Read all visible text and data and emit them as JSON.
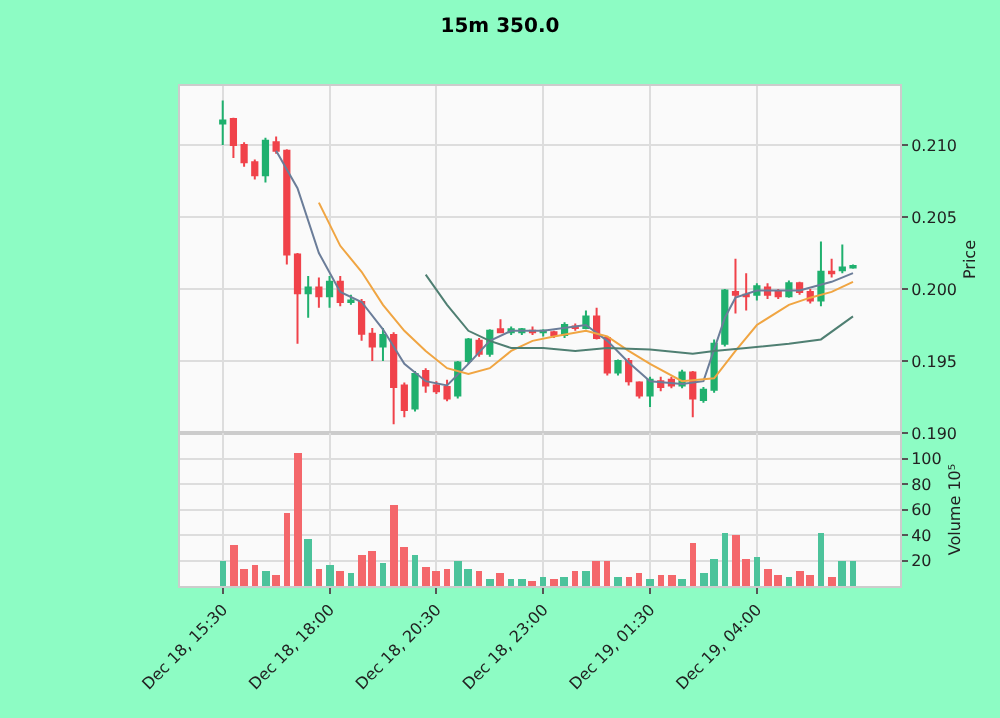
{
  "chart_data": [
    {
      "type": "candlestick",
      "title": "15m 350.0",
      "ylabel": "Price",
      "x": [
        "--12-18T15:30",
        "--12-18T15:45",
        "--12-18T16:00",
        "--12-18T16:15",
        "--12-18T16:30",
        "--12-18T16:45",
        "--12-18T17:00",
        "--12-18T17:15",
        "--12-18T17:30",
        "--12-18T17:45",
        "--12-18T18:00",
        "--12-18T18:15",
        "--12-18T18:30",
        "--12-18T18:45",
        "--12-18T19:00",
        "--12-18T19:15",
        "--12-18T19:30",
        "--12-18T19:45",
        "--12-18T20:00",
        "--12-18T20:15",
        "--12-18T20:30",
        "--12-18T20:45",
        "--12-18T21:00",
        "--12-18T21:15",
        "--12-18T21:30",
        "--12-18T21:45",
        "--12-18T22:00",
        "--12-18T22:15",
        "--12-18T22:30",
        "--12-18T22:45",
        "--12-18T23:00",
        "--12-18T23:15",
        "--12-18T23:30",
        "--12-18T23:45",
        "--12-19T00:00",
        "--12-19T00:15",
        "--12-19T00:30",
        "--12-19T00:45",
        "--12-19T01:00",
        "--12-19T01:15",
        "--12-19T01:30",
        "--12-19T01:45",
        "--12-19T02:00",
        "--12-19T02:15",
        "--12-19T02:30",
        "--12-19T02:45",
        "--12-19T03:00",
        "--12-19T03:15",
        "--12-19T03:30",
        "--12-19T03:45",
        "--12-19T04:00",
        "--12-19T04:15",
        "--12-19T04:30",
        "--12-19T04:45",
        "--12-19T05:00",
        "--12-19T05:15",
        "--12-19T05:30",
        "--12-19T05:45",
        "--12-19T06:00",
        "--12-19T06:15"
      ],
      "ohlc": [
        [
          0.2115,
          0.2131,
          0.21,
          0.2117
        ],
        [
          0.2118,
          0.2119,
          0.2091,
          0.21
        ],
        [
          0.21,
          0.2102,
          0.2085,
          0.2088
        ],
        [
          0.2088,
          0.209,
          0.2076,
          0.2079
        ],
        [
          0.2079,
          0.2105,
          0.2074,
          0.2103
        ],
        [
          0.2102,
          0.2106,
          0.2094,
          0.2096
        ],
        [
          0.2096,
          0.2097,
          0.2017,
          0.2024
        ],
        [
          0.2024,
          0.2025,
          0.1962,
          0.1997
        ],
        [
          0.1997,
          0.2009,
          0.198,
          0.2001
        ],
        [
          0.2001,
          0.2008,
          0.1987,
          0.1995
        ],
        [
          0.1995,
          0.2009,
          0.1987,
          0.2005
        ],
        [
          0.2005,
          0.2009,
          0.1988,
          0.1991
        ],
        [
          0.1991,
          0.1996,
          0.1989,
          0.1992
        ],
        [
          0.1991,
          0.1993,
          0.1964,
          0.1969
        ],
        [
          0.1969,
          0.1973,
          0.195,
          0.196
        ],
        [
          0.196,
          0.1973,
          0.195,
          0.1968
        ],
        [
          0.1968,
          0.197,
          0.1906,
          0.1932
        ],
        [
          0.1933,
          0.1935,
          0.1911,
          0.1916
        ],
        [
          0.1917,
          0.1943,
          0.1915,
          0.1941
        ],
        [
          0.1943,
          0.1945,
          0.1928,
          0.1933
        ],
        [
          0.1933,
          0.1936,
          0.1927,
          0.1929
        ],
        [
          0.1932,
          0.1937,
          0.1922,
          0.1924
        ],
        [
          0.1926,
          0.195,
          0.1924,
          0.1949
        ],
        [
          0.195,
          0.1966,
          0.1948,
          0.1965
        ],
        [
          0.1964,
          0.1966,
          0.1953,
          0.1955
        ],
        [
          0.1955,
          0.1972,
          0.1953,
          0.1971
        ],
        [
          0.1972,
          0.1979,
          0.197,
          0.197
        ],
        [
          0.197,
          0.1974,
          0.1968,
          0.1972
        ],
        [
          0.197,
          0.1973,
          0.1968,
          0.1972
        ],
        [
          0.1971,
          0.1974,
          0.1968,
          0.197
        ],
        [
          0.197,
          0.1972,
          0.1967,
          0.1971
        ],
        [
          0.197,
          0.1971,
          0.1966,
          0.1968
        ],
        [
          0.1968,
          0.1977,
          0.1966,
          0.1975
        ],
        [
          0.1974,
          0.1976,
          0.1971,
          0.1973
        ],
        [
          0.1973,
          0.1985,
          0.1972,
          0.1981
        ],
        [
          0.1981,
          0.1987,
          0.1965,
          0.1966
        ],
        [
          0.1966,
          0.1967,
          0.194,
          0.1942
        ],
        [
          0.1942,
          0.1951,
          0.194,
          0.195
        ],
        [
          0.195,
          0.1952,
          0.1933,
          0.1936
        ],
        [
          0.1935,
          0.1936,
          0.1924,
          0.1926
        ],
        [
          0.1926,
          0.1939,
          0.1918,
          0.1937
        ],
        [
          0.1936,
          0.1939,
          0.1929,
          0.1932
        ],
        [
          0.1937,
          0.1939,
          0.1931,
          0.1933
        ],
        [
          0.1933,
          0.1944,
          0.1931,
          0.1942
        ],
        [
          0.1942,
          0.1943,
          0.1911,
          0.1924
        ],
        [
          0.1923,
          0.1932,
          0.1921,
          0.193
        ],
        [
          0.193,
          0.1965,
          0.1928,
          0.1962
        ],
        [
          0.1962,
          0.2,
          0.196,
          0.1999
        ],
        [
          0.1998,
          0.2021,
          0.1983,
          0.1996
        ],
        [
          0.1996,
          0.2011,
          0.1985,
          0.1995
        ],
        [
          0.1996,
          0.2004,
          0.1992,
          0.2002
        ],
        [
          0.2001,
          0.2004,
          0.1993,
          0.1996
        ],
        [
          0.1998,
          0.2,
          0.1993,
          0.1995
        ],
        [
          0.1995,
          0.2006,
          0.1994,
          0.2004
        ],
        [
          0.2004,
          0.2005,
          0.1996,
          0.1998
        ],
        [
          0.1998,
          0.2,
          0.199,
          0.1992
        ],
        [
          0.1992,
          0.2033,
          0.1988,
          0.2012
        ],
        [
          0.2012,
          0.2021,
          0.2008,
          0.2011
        ],
        [
          0.2013,
          0.2031,
          0.2011,
          0.2015
        ],
        [
          0.2015,
          0.2017,
          0.2014,
          0.2016
        ]
      ],
      "colors": [
        "#1fb06e",
        "#f0424a",
        "#f0424a",
        "#f0424a",
        "#1fb06e",
        "#f0424a",
        "#f0424a",
        "#f0424a",
        "#1fb06e",
        "#f0424a",
        "#1fb06e",
        "#f0424a",
        "#1fb06e",
        "#f0424a",
        "#f0424a",
        "#1fb06e",
        "#f0424a",
        "#f0424a",
        "#1fb06e",
        "#f0424a",
        "#f0424a",
        "#f0424a",
        "#1fb06e",
        "#1fb06e",
        "#f0424a",
        "#1fb06e",
        "#f0424a",
        "#1fb06e",
        "#1fb06e",
        "#f0424a",
        "#1fb06e",
        "#f0424a",
        "#1fb06e",
        "#f0424a",
        "#1fb06e",
        "#f0424a",
        "#f0424a",
        "#1fb06e",
        "#f0424a",
        "#f0424a",
        "#1fb06e",
        "#f0424a",
        "#f0424a",
        "#1fb06e",
        "#f0424a",
        "#1fb06e",
        "#1fb06e",
        "#1fb06e",
        "#f0424a",
        "#f0424a",
        "#1fb06e",
        "#f0424a",
        "#f0424a",
        "#1fb06e",
        "#f0424a",
        "#f0424a",
        "#1fb06e",
        "#f0424a",
        "#1fb06e",
        "#1fb06e"
      ],
      "series": [
        {
          "type": "line",
          "color": "#6b7d99",
          "x": [
            "--12-18T16:45",
            "--12-18T17:15",
            "--12-18T17:45",
            "--12-18T18:15",
            "--12-18T18:45",
            "--12-18T19:15",
            "--12-18T19:45",
            "--12-18T20:15",
            "--12-18T20:45",
            "--12-18T21:15",
            "--12-18T21:45",
            "--12-18T22:15",
            "--12-18T23:00",
            "--12-19T00:00",
            "--12-19T00:30",
            "--12-19T01:00",
            "--12-19T01:30",
            "--12-19T02:15",
            "--12-19T02:45",
            "--12-19T03:15",
            "--12-19T03:30",
            "--12-19T04:00",
            "--12-19T05:00",
            "--12-19T05:45",
            "--12-19T06:15"
          ],
          "values": [
            0.2096,
            0.207,
            0.2025,
            0.1998,
            0.1991,
            0.1972,
            0.1948,
            0.1936,
            0.1933,
            0.1948,
            0.1964,
            0.1971,
            0.1971,
            0.1975,
            0.1964,
            0.1949,
            0.1936,
            0.1934,
            0.1936,
            0.198,
            0.1994,
            0.1999,
            0.1999,
            0.2005,
            0.2011
          ]
        },
        {
          "type": "line",
          "color": "#f0a542",
          "x": [
            "--12-18T17:45",
            "--12-18T18:15",
            "--12-18T18:45",
            "--12-18T19:15",
            "--12-18T19:45",
            "--12-18T20:15",
            "--12-18T20:45",
            "--12-18T21:15",
            "--12-18T21:45",
            "--12-18T22:15",
            "--12-18T22:45",
            "--12-18T23:15",
            "--12-19T00:00",
            "--12-19T00:30",
            "--12-19T01:00",
            "--12-19T01:30",
            "--12-19T02:15",
            "--12-19T03:00",
            "--12-19T03:30",
            "--12-19T04:00",
            "--12-19T04:45",
            "--12-19T05:15",
            "--12-19T05:45",
            "--12-19T06:15"
          ],
          "values": [
            0.206,
            0.203,
            0.2012,
            0.1989,
            0.1971,
            0.1957,
            0.1945,
            0.1941,
            0.1945,
            0.1957,
            0.1964,
            0.1967,
            0.1971,
            0.1967,
            0.1957,
            0.1948,
            0.1936,
            0.1938,
            0.1957,
            0.1975,
            0.1989,
            0.1994,
            0.1998,
            0.2005
          ]
        },
        {
          "type": "line",
          "color": "#4f7f72",
          "x": [
            "--12-18T20:15",
            "--12-18T20:45",
            "--12-18T21:15",
            "--12-18T21:45",
            "--12-18T22:15",
            "--12-18T23:00",
            "--12-18T23:45",
            "--12-19T00:30",
            "--12-19T01:30",
            "--12-19T02:30",
            "--12-19T03:00",
            "--12-19T03:45",
            "--12-19T04:45",
            "--12-19T05:30",
            "--12-19T06:15"
          ],
          "values": [
            0.201,
            0.1989,
            0.1971,
            0.1964,
            0.1959,
            0.1959,
            0.1957,
            0.1959,
            0.1958,
            0.1955,
            0.1957,
            0.1959,
            0.1962,
            0.1965,
            0.1981
          ]
        }
      ],
      "xlim": [
        "--12-18T14:30",
        "--12-19T07:21"
      ],
      "xticks": [
        {
          "value": "--12-18T15:30",
          "label": "Dec 18, 15:30"
        },
        {
          "value": "--12-18T18:00",
          "label": "Dec 18, 18:00"
        },
        {
          "value": "--12-18T20:30",
          "label": "Dec 18, 20:30"
        },
        {
          "value": "--12-18T23:00",
          "label": "Dec 18, 23:00"
        },
        {
          "value": "--12-19T01:30",
          "label": "Dec 19, 01:30"
        },
        {
          "value": "--12-19T04:00",
          "label": "Dec 19, 04:00"
        }
      ],
      "ylim": [
        0.19,
        0.2141
      ],
      "yticks": [
        {
          "value": 0.19,
          "label": "0.190"
        },
        {
          "value": 0.195,
          "label": "0.195"
        },
        {
          "value": 0.2,
          "label": "0.200"
        },
        {
          "value": 0.205,
          "label": "0.205"
        },
        {
          "value": 0.21,
          "label": "0.210"
        }
      ],
      "tick_labels": "y",
      "grid": true
    },
    {
      "type": "bar",
      "ylabel": "Volume 10⁵",
      "x": [
        "--12-18T15:30",
        "--12-18T15:45",
        "--12-18T16:00",
        "--12-18T16:15",
        "--12-18T16:30",
        "--12-18T16:45",
        "--12-18T17:00",
        "--12-18T17:15",
        "--12-18T17:30",
        "--12-18T17:45",
        "--12-18T18:00",
        "--12-18T18:15",
        "--12-18T18:30",
        "--12-18T18:45",
        "--12-18T19:00",
        "--12-18T19:15",
        "--12-18T19:30",
        "--12-18T19:45",
        "--12-18T20:00",
        "--12-18T20:15",
        "--12-18T20:30",
        "--12-18T20:45",
        "--12-18T21:00",
        "--12-18T21:15",
        "--12-18T21:30",
        "--12-18T21:45",
        "--12-18T22:00",
        "--12-18T22:15",
        "--12-18T22:30",
        "--12-18T22:45",
        "--12-18T23:00",
        "--12-18T23:15",
        "--12-18T23:30",
        "--12-18T23:45",
        "--12-19T00:00",
        "--12-19T00:15",
        "--12-19T00:30",
        "--12-19T00:45",
        "--12-19T01:00",
        "--12-19T01:15",
        "--12-19T01:30",
        "--12-19T01:45",
        "--12-19T02:00",
        "--12-19T02:15",
        "--12-19T02:30",
        "--12-19T02:45",
        "--12-19T03:00",
        "--12-19T03:15",
        "--12-19T03:30",
        "--12-19T03:45",
        "--12-19T04:00",
        "--12-19T04:15",
        "--12-19T04:30",
        "--12-19T04:45",
        "--12-19T05:00",
        "--12-19T05:15",
        "--12-19T05:30",
        "--12-19T05:45",
        "--12-19T06:00",
        "--12-19T06:15"
      ],
      "values": [
        20,
        32,
        13,
        16,
        11,
        8,
        58,
        104,
        37,
        14,
        16,
        12,
        10,
        25,
        28,
        18,
        64,
        30,
        25,
        15,
        12,
        13,
        20,
        14,
        11,
        6,
        10,
        6,
        6,
        4,
        7,
        5,
        7,
        11,
        12,
        19,
        19,
        7,
        7,
        10,
        6,
        8,
        9,
        6,
        34,
        10,
        21,
        41,
        40,
        21,
        22,
        14,
        8,
        7,
        12,
        8,
        41,
        7,
        19,
        19
      ],
      "colors": [
        "#4cc39b",
        "#f4676b",
        "#f4676b",
        "#f4676b",
        "#4cc39b",
        "#f4676b",
        "#f4676b",
        "#f4676b",
        "#4cc39b",
        "#f4676b",
        "#4cc39b",
        "#f4676b",
        "#4cc39b",
        "#f4676b",
        "#f4676b",
        "#4cc39b",
        "#f4676b",
        "#f4676b",
        "#4cc39b",
        "#f4676b",
        "#f4676b",
        "#f4676b",
        "#4cc39b",
        "#4cc39b",
        "#f4676b",
        "#4cc39b",
        "#f4676b",
        "#4cc39b",
        "#4cc39b",
        "#f4676b",
        "#4cc39b",
        "#f4676b",
        "#4cc39b",
        "#f4676b",
        "#4cc39b",
        "#f4676b",
        "#f4676b",
        "#4cc39b",
        "#f4676b",
        "#f4676b",
        "#4cc39b",
        "#f4676b",
        "#f4676b",
        "#4cc39b",
        "#f4676b",
        "#4cc39b",
        "#4cc39b",
        "#4cc39b",
        "#f4676b",
        "#f4676b",
        "#4cc39b",
        "#f4676b",
        "#f4676b",
        "#4cc39b",
        "#f4676b",
        "#f4676b",
        "#4cc39b",
        "#f4676b",
        "#4cc39b",
        "#4cc39b"
      ],
      "xlim": [
        "--12-18T14:30",
        "--12-19T07:21"
      ],
      "xticks": [
        {
          "value": "--12-18T15:30",
          "label": "Dec 18, 15:30"
        },
        {
          "value": "--12-18T18:00",
          "label": "Dec 18, 18:00"
        },
        {
          "value": "--12-18T20:30",
          "label": "Dec 18, 20:30"
        },
        {
          "value": "--12-18T23:00",
          "label": "Dec 18, 23:00"
        },
        {
          "value": "--12-19T01:30",
          "label": "Dec 19, 01:30"
        },
        {
          "value": "--12-19T04:00",
          "label": "Dec 19, 04:00"
        }
      ],
      "ylim": [
        0,
        120
      ],
      "yticks": [
        20,
        40,
        60,
        80,
        100
      ],
      "grid": true
    }
  ]
}
